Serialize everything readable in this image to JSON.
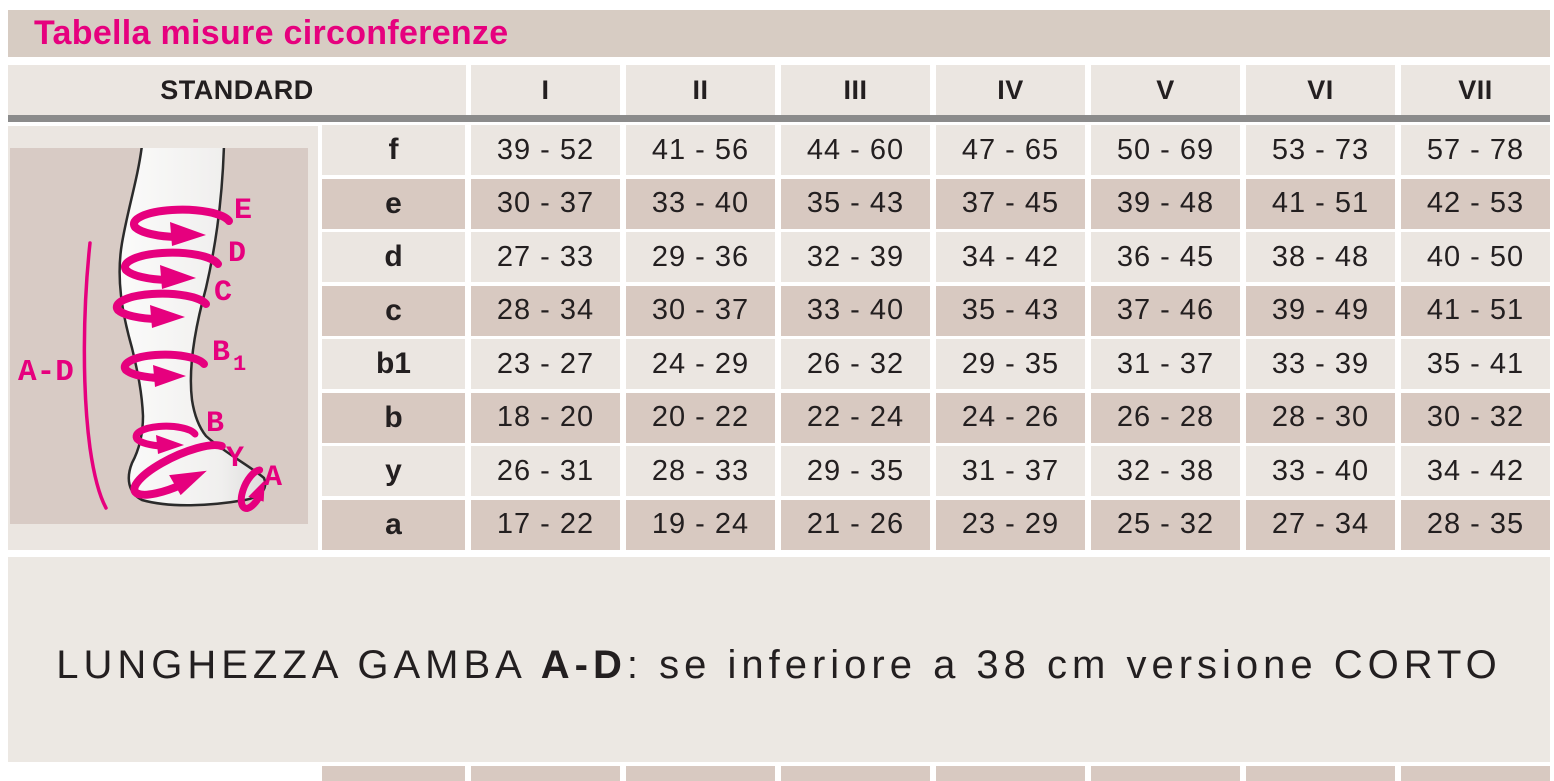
{
  "title": "Tabella misure circonferenze",
  "table": {
    "corner_label": "STANDARD",
    "columns": [
      "I",
      "II",
      "III",
      "IV",
      "V",
      "VI",
      "VII"
    ],
    "rows": [
      {
        "label": "f",
        "values": [
          "39 - 52",
          "41 - 56",
          "44 - 60",
          "47 - 65",
          "50 - 69",
          "53 - 73",
          "57 - 78"
        ]
      },
      {
        "label": "e",
        "values": [
          "30 - 37",
          "33 - 40",
          "35 - 43",
          "37 - 45",
          "39 - 48",
          "41 - 51",
          "42 - 53"
        ]
      },
      {
        "label": "d",
        "values": [
          "27 - 33",
          "29 - 36",
          "32 - 39",
          "34 - 42",
          "36 - 45",
          "38 - 48",
          "40 - 50"
        ]
      },
      {
        "label": "c",
        "values": [
          "28 - 34",
          "30 - 37",
          "33 - 40",
          "35 - 43",
          "37 - 46",
          "39 - 49",
          "41 - 51"
        ]
      },
      {
        "label": "b1",
        "values": [
          "23 - 27",
          "24 - 29",
          "26 - 32",
          "29 - 35",
          "31 - 37",
          "33 - 39",
          "35 - 41"
        ]
      },
      {
        "label": "b",
        "values": [
          "18 - 20",
          "20 - 22",
          "22 - 24",
          "24 - 26",
          "26 - 28",
          "28 - 30",
          "30 - 32"
        ]
      },
      {
        "label": "y",
        "values": [
          "26 - 31",
          "28 - 33",
          "29 - 35",
          "31 - 37",
          "32 - 38",
          "33 - 40",
          "34 - 42"
        ]
      },
      {
        "label": "a",
        "values": [
          "17 - 22",
          "19 - 24",
          "21 - 26",
          "23 - 29",
          "25 - 32",
          "27 - 34",
          "28 - 35"
        ]
      }
    ]
  },
  "diagram": {
    "range_label": "A-D",
    "labels": {
      "e_point": "E",
      "d_point": "D",
      "c_point": "C",
      "b1_main": "B",
      "b1_sub": "1",
      "b_point": "B",
      "y_point": "Y",
      "a_point": "A"
    }
  },
  "footnote": {
    "prefix": "LUNGHEZZA GAMBA ",
    "bold": "A-D",
    "suffix": ": se inferiore a 38 cm versione CORTO"
  },
  "colors": {
    "accent_pink": "#e6007e",
    "title_bar_bg": "#d7ccc3",
    "header_bg": "#ebe6e1",
    "row_light": "#ebe6e1",
    "row_dark": "#d8c9c1",
    "diagram_bg": "#d8cbc5",
    "divider_gray": "#8b8b8b",
    "panel_bg": "#ece8e3",
    "text_dark": "#231f20"
  }
}
